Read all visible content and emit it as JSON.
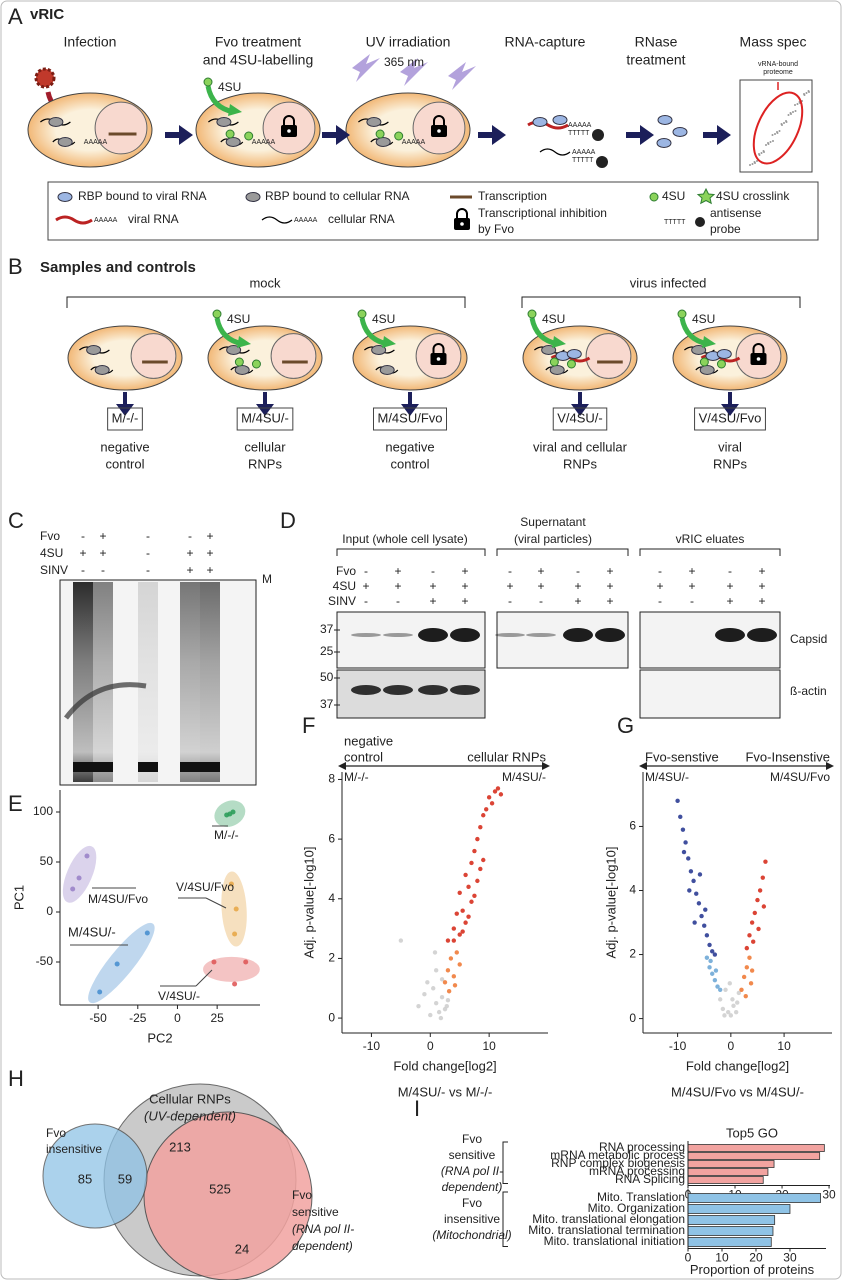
{
  "header": {
    "title": "vRIC"
  },
  "panel_A": {
    "letter": "A",
    "steps": [
      [
        "Infection"
      ],
      [
        "Fvo treatment",
        "and 4SU-labelling"
      ],
      [
        "UV irradiation"
      ],
      [
        "RNA-capture"
      ],
      [
        "RNase",
        "treatment"
      ],
      [
        "Mass spec"
      ]
    ],
    "uv_label": "365 nm",
    "tag": "4SU",
    "polyA": "AAAAA",
    "probe": "TTTTT",
    "ms_label": [
      "vRNA-bound",
      "proteome"
    ],
    "legend": [
      "RBP bound to viral RNA",
      "RBP bound to cellular RNA",
      "Transcription",
      "4SU",
      "4SU crosslink",
      "viral RNA",
      "cellular RNA",
      "Transcriptional inhibition",
      "by Fvo",
      "antisense",
      "probe"
    ]
  },
  "panel_B": {
    "letter": "B",
    "title": "Samples and controls",
    "groups": [
      "mock",
      "virus infected"
    ],
    "tag": "4SU",
    "samples": [
      {
        "code": "M/-/-",
        "description": [
          "negative",
          "control"
        ]
      },
      {
        "code": "M/4SU/-",
        "description": [
          "cellular",
          "RNPs"
        ]
      },
      {
        "code": "M/4SU/Fvo",
        "description": [
          "negative",
          "control"
        ]
      },
      {
        "code": "V/4SU/-",
        "description": [
          "viral and cellular",
          "RNPs"
        ]
      },
      {
        "code": "V/4SU/Fvo",
        "description": [
          "viral",
          "RNPs"
        ]
      }
    ]
  },
  "panel_C": {
    "letter": "C",
    "rows": [
      "Fvo",
      "4SU",
      "SINV"
    ],
    "lanes": [
      [
        "-",
        "+",
        "-"
      ],
      [
        "+",
        "+",
        "-"
      ],
      [
        "-",
        "-",
        "-"
      ],
      [
        "-",
        "+",
        "+"
      ],
      [
        "+",
        "+",
        "+"
      ]
    ],
    "marker": "M"
  },
  "panel_D": {
    "letter": "D",
    "sections": [
      [
        "Input (whole cell lysate)"
      ],
      [
        "Supernatant",
        "(viral particles)"
      ],
      [
        "vRIC eluates"
      ]
    ],
    "rows": [
      "Fvo",
      "4SU",
      "SINV"
    ],
    "lanes": [
      [
        "-",
        "+",
        "-"
      ],
      [
        "+",
        "+",
        "-"
      ],
      [
        "-",
        "+",
        "+"
      ],
      [
        "+",
        "+",
        "+"
      ]
    ],
    "mw": [
      37,
      25,
      50,
      37
    ],
    "bands": [
      "Capsid",
      "ß-actin"
    ]
  },
  "panel_H": {
    "letter": "H",
    "cellular": [
      "Cellular RNPs",
      "(UV-dependent)"
    ],
    "insensitive": [
      "Fvo",
      "insensitive"
    ],
    "sensitive": [
      "Fvo",
      "sensitive",
      "(RNA pol II-",
      "dependent)"
    ],
    "counts": [
      85,
      59,
      213,
      525,
      24
    ]
  },
  "chart_data": [
    {
      "type": "scatter",
      "letter": "E",
      "xlabel": "PC2",
      "ylabel": "PC1",
      "xlim": [
        -74,
        52
      ],
      "ylim": [
        -93,
        122
      ],
      "xticks": [
        -50,
        -25,
        0,
        25
      ],
      "yticks": [
        100,
        50,
        0,
        -50
      ],
      "series": [
        {
          "name": "M/-/-",
          "color": "#2e9e5b",
          "x": [
            31,
            33,
            35
          ],
          "values": [
            97,
            98,
            100
          ]
        },
        {
          "name": "M/4SU/Fvo",
          "color": "#9b84c9",
          "x": [
            -66,
            -62,
            -57
          ],
          "values": [
            23,
            34,
            56
          ]
        },
        {
          "name": "M/4SU/-",
          "color": "#4a90d0",
          "x": [
            -49,
            -38,
            -19
          ],
          "values": [
            -80,
            -52,
            -21
          ]
        },
        {
          "name": "V/4SU/Fvo",
          "color": "#e8a94a",
          "x": [
            34,
            37,
            36
          ],
          "values": [
            28,
            3,
            -22
          ]
        },
        {
          "name": "V/4SU/-",
          "color": "#e05a5a",
          "x": [
            23,
            36,
            43
          ],
          "values": [
            -50,
            -72,
            -50
          ]
        }
      ]
    },
    {
      "type": "scatter",
      "letter": "F",
      "xlabel": "Fold change[log2]",
      "ylabel": "Adj. p-value[-log10]",
      "subtitle": "M/4SU/- vs M/-/-",
      "arrow_left": [
        "negative",
        "control"
      ],
      "arrow_right": "cellular RNPs",
      "left_sample": "M/-/-",
      "right_sample": "M/4SU/-",
      "xlim": [
        -15,
        20
      ],
      "ylim": [
        -0.5,
        8.25
      ],
      "xticks": [
        -10,
        0,
        10
      ],
      "yticks": [
        0,
        2,
        4,
        6,
        8
      ],
      "series": [
        {
          "color": "#cfcfcf",
          "x": [
            -5,
            -2,
            -1,
            0,
            0.5,
            1,
            1,
            1.5,
            2,
            2,
            2.5,
            3,
            -0.5,
            0.8,
            1.8,
            2.8
          ],
          "values": [
            2.6,
            0.4,
            0.8,
            0.1,
            1.0,
            0.5,
            1.6,
            0.2,
            0.7,
            1.3,
            0.3,
            0.6,
            1.2,
            2.2,
            0.0,
            0.4
          ]
        },
        {
          "color": "#f07c3a",
          "x": [
            2.5,
            3,
            3.5,
            4,
            4.5,
            5,
            3.2,
            4.2
          ],
          "values": [
            1.2,
            1.6,
            2.0,
            1.4,
            2.2,
            1.8,
            0.9,
            1.1
          ]
        },
        {
          "color": "#d7301f",
          "x": [
            3,
            4,
            4.5,
            5,
            5,
            5.5,
            6,
            6,
            6.5,
            7,
            7,
            7.5,
            8,
            8,
            8.5,
            9,
            9,
            9.5,
            10,
            10.5,
            11,
            11.5,
            12,
            4,
            5.5,
            6.5,
            7.5,
            8.5
          ],
          "values": [
            2.6,
            3.0,
            3.5,
            2.8,
            4.2,
            3.6,
            4.8,
            3.2,
            4.4,
            5.2,
            3.9,
            5.6,
            6.0,
            4.6,
            6.4,
            6.8,
            5.3,
            7.0,
            7.4,
            7.2,
            7.6,
            7.7,
            7.5,
            2.6,
            2.9,
            3.4,
            4.1,
            5.0
          ]
        }
      ]
    },
    {
      "type": "scatter",
      "letter": "G",
      "xlabel": "Fold change[log2]",
      "ylabel": "Adj. p-value[-log10]",
      "subtitle": "M/4SU/Fvo vs M/4SU/-",
      "arrow_left": [
        "Fvo-senstive"
      ],
      "arrow_right": "Fvo-Insenstive",
      "left_sample": "M/4SU/-",
      "right_sample": "M/4SU/Fvo",
      "xlim": [
        -16.5,
        19
      ],
      "ylim": [
        -0.45,
        7.7
      ],
      "xticks": [
        -10,
        0,
        10
      ],
      "yticks": [
        0,
        2,
        4,
        6
      ],
      "series": [
        {
          "color": "#cfcfcf",
          "x": [
            -2,
            -1.5,
            -1,
            -0.5,
            0,
            0.5,
            1,
            1.5,
            -1.2,
            0.3,
            1.2,
            -0.2
          ],
          "values": [
            0.6,
            0.3,
            0.9,
            0.2,
            0.1,
            0.4,
            0.2,
            0.8,
            0.1,
            0.6,
            0.5,
            1.1
          ]
        },
        {
          "color": "#6fa8d6",
          "x": [
            -4.5,
            -4,
            -3.5,
            -3,
            -2.5,
            -2,
            -3.8,
            -2.8
          ],
          "values": [
            1.9,
            1.6,
            1.4,
            1.2,
            1.0,
            0.9,
            1.8,
            1.5
          ]
        },
        {
          "color": "#2b3c94",
          "x": [
            -10,
            -9.5,
            -9,
            -8.5,
            -8,
            -7.5,
            -7,
            -6.5,
            -6,
            -5.5,
            -5,
            -4.5,
            -4,
            -3.5,
            -3,
            -8.8,
            -7.8,
            -6.8,
            -5.8,
            -4.8
          ],
          "values": [
            6.8,
            6.3,
            5.9,
            5.5,
            5.0,
            4.6,
            4.3,
            3.9,
            3.6,
            3.2,
            2.9,
            2.6,
            2.3,
            2.1,
            2.0,
            5.2,
            4.0,
            3.0,
            4.5,
            3.4
          ]
        },
        {
          "color": "#f07c3a",
          "x": [
            2,
            2.5,
            3,
            3.5,
            4,
            2.8,
            3.8
          ],
          "values": [
            0.9,
            1.3,
            1.6,
            1.9,
            1.5,
            0.7,
            1.1
          ]
        },
        {
          "color": "#d7301f",
          "x": [
            3,
            3.5,
            4,
            4.5,
            5,
            5.5,
            6,
            6.5,
            4.2,
            5.2,
            6.2
          ],
          "values": [
            2.2,
            2.6,
            3.0,
            3.3,
            3.7,
            4.0,
            4.4,
            4.9,
            2.4,
            2.8,
            3.5
          ]
        }
      ]
    },
    {
      "type": "bar",
      "letter": "I",
      "title": "Top5 GO",
      "group_label": [
        "Fvo",
        "sensitive",
        "(RNA pol II-",
        "dependent)"
      ],
      "categories": [
        "RNA processing",
        "mRNA metabolic process",
        "RNP complex biogenesis",
        "mRNA processing",
        "RNA Splicing"
      ],
      "values": [
        29,
        28,
        18.3,
        17,
        16
      ],
      "color": "#f2a3a0",
      "xlim": [
        0,
        30.2
      ],
      "xticks": [
        0,
        10,
        20,
        30
      ]
    },
    {
      "type": "bar",
      "group_label": [
        "Fvo",
        "insensitive",
        "(Mitochondrial)"
      ],
      "xlabel": "Proportion of proteins",
      "categories": [
        "Mito. Translation",
        "Mito. Organization",
        "Mito. translational elongation",
        "Mito. translational termination",
        "Mito. translational initiation"
      ],
      "values": [
        39,
        30,
        25.5,
        25,
        24.5
      ],
      "color": "#8fc3e6",
      "xlim": [
        0,
        40.6
      ],
      "xticks": [
        0,
        10,
        20,
        30
      ]
    }
  ]
}
